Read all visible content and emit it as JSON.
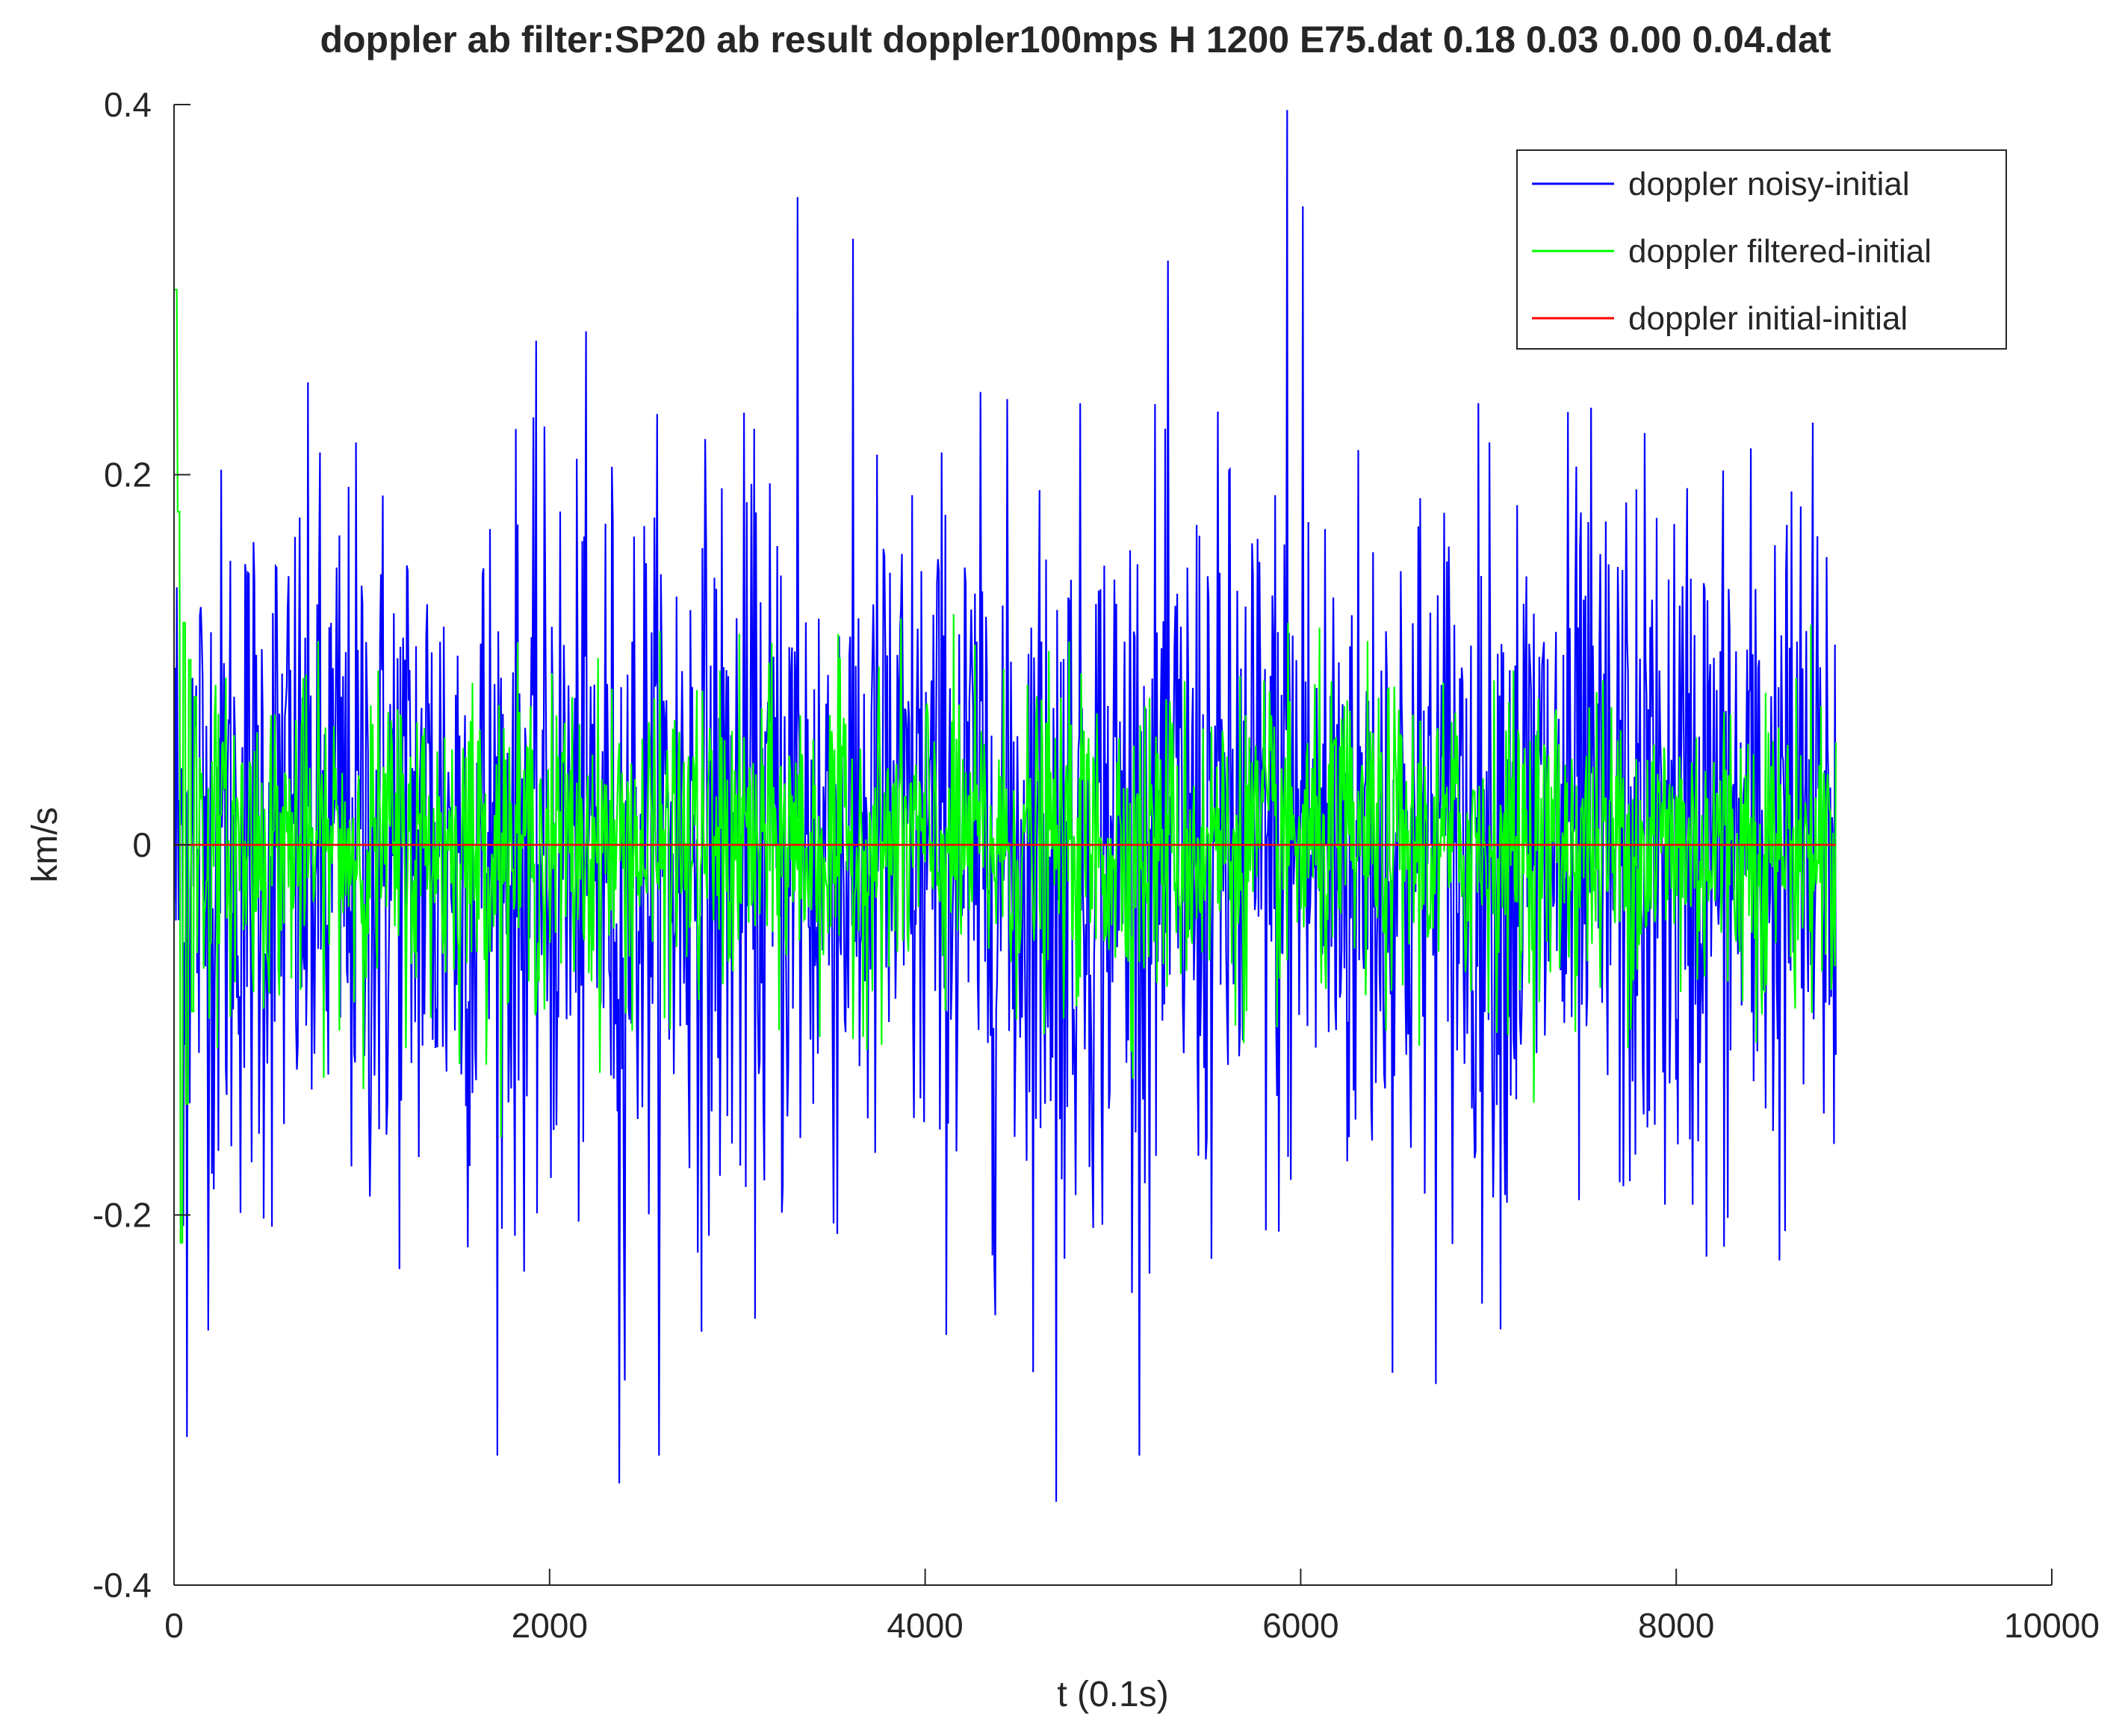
{
  "chart_data": {
    "type": "line",
    "title": "doppler ab filter:SP20 ab result doppler100mps H 1200 E75.dat 0.18 0.03 0.00 0.04.dat",
    "xlabel": "t (0.1s)",
    "ylabel": "km/s",
    "xlim": [
      0,
      10000
    ],
    "ylim": [
      -0.4,
      0.4
    ],
    "x_ticks": [
      "0",
      "2000",
      "4000",
      "6000",
      "8000",
      "10000"
    ],
    "y_ticks": [
      "-0.4",
      "-0.2",
      "0",
      "0.2",
      "0.4"
    ],
    "x_tick_values": [
      0,
      2000,
      4000,
      6000,
      8000,
      10000
    ],
    "y_tick_values": [
      -0.4,
      -0.2,
      0,
      0.2,
      0.4
    ],
    "grid": false,
    "legend_position": "top-right",
    "x_range": [
      0,
      8850
    ],
    "series": [
      {
        "name": "doppler noisy-initial",
        "color": "#0000ff",
        "description_stats": {
          "mean": 0.0,
          "std_approx": 0.1,
          "min_approx": -0.355,
          "max_approx": 0.397
        },
        "notable_peaks": [
          {
            "x": 5930,
            "y": 0.397
          },
          {
            "x": 6010,
            "y": 0.345
          },
          {
            "x": 3320,
            "y": 0.35
          },
          {
            "x": 4700,
            "y": -0.355
          },
          {
            "x": 2370,
            "y": -0.345
          },
          {
            "x": 70,
            "y": -0.32
          }
        ]
      },
      {
        "name": "doppler filtered-initial",
        "color": "#00ff00",
        "description_stats": {
          "mean": 0.0,
          "std_approx": 0.04,
          "initial_max": 0.3,
          "initial_min": -0.215
        },
        "notable_peaks": [
          {
            "x": 15,
            "y": 0.3
          },
          {
            "x": 50,
            "y": -0.215
          }
        ]
      },
      {
        "name": "doppler initial-initial",
        "color": "#ff0000",
        "values_constant": 0.0
      }
    ]
  }
}
